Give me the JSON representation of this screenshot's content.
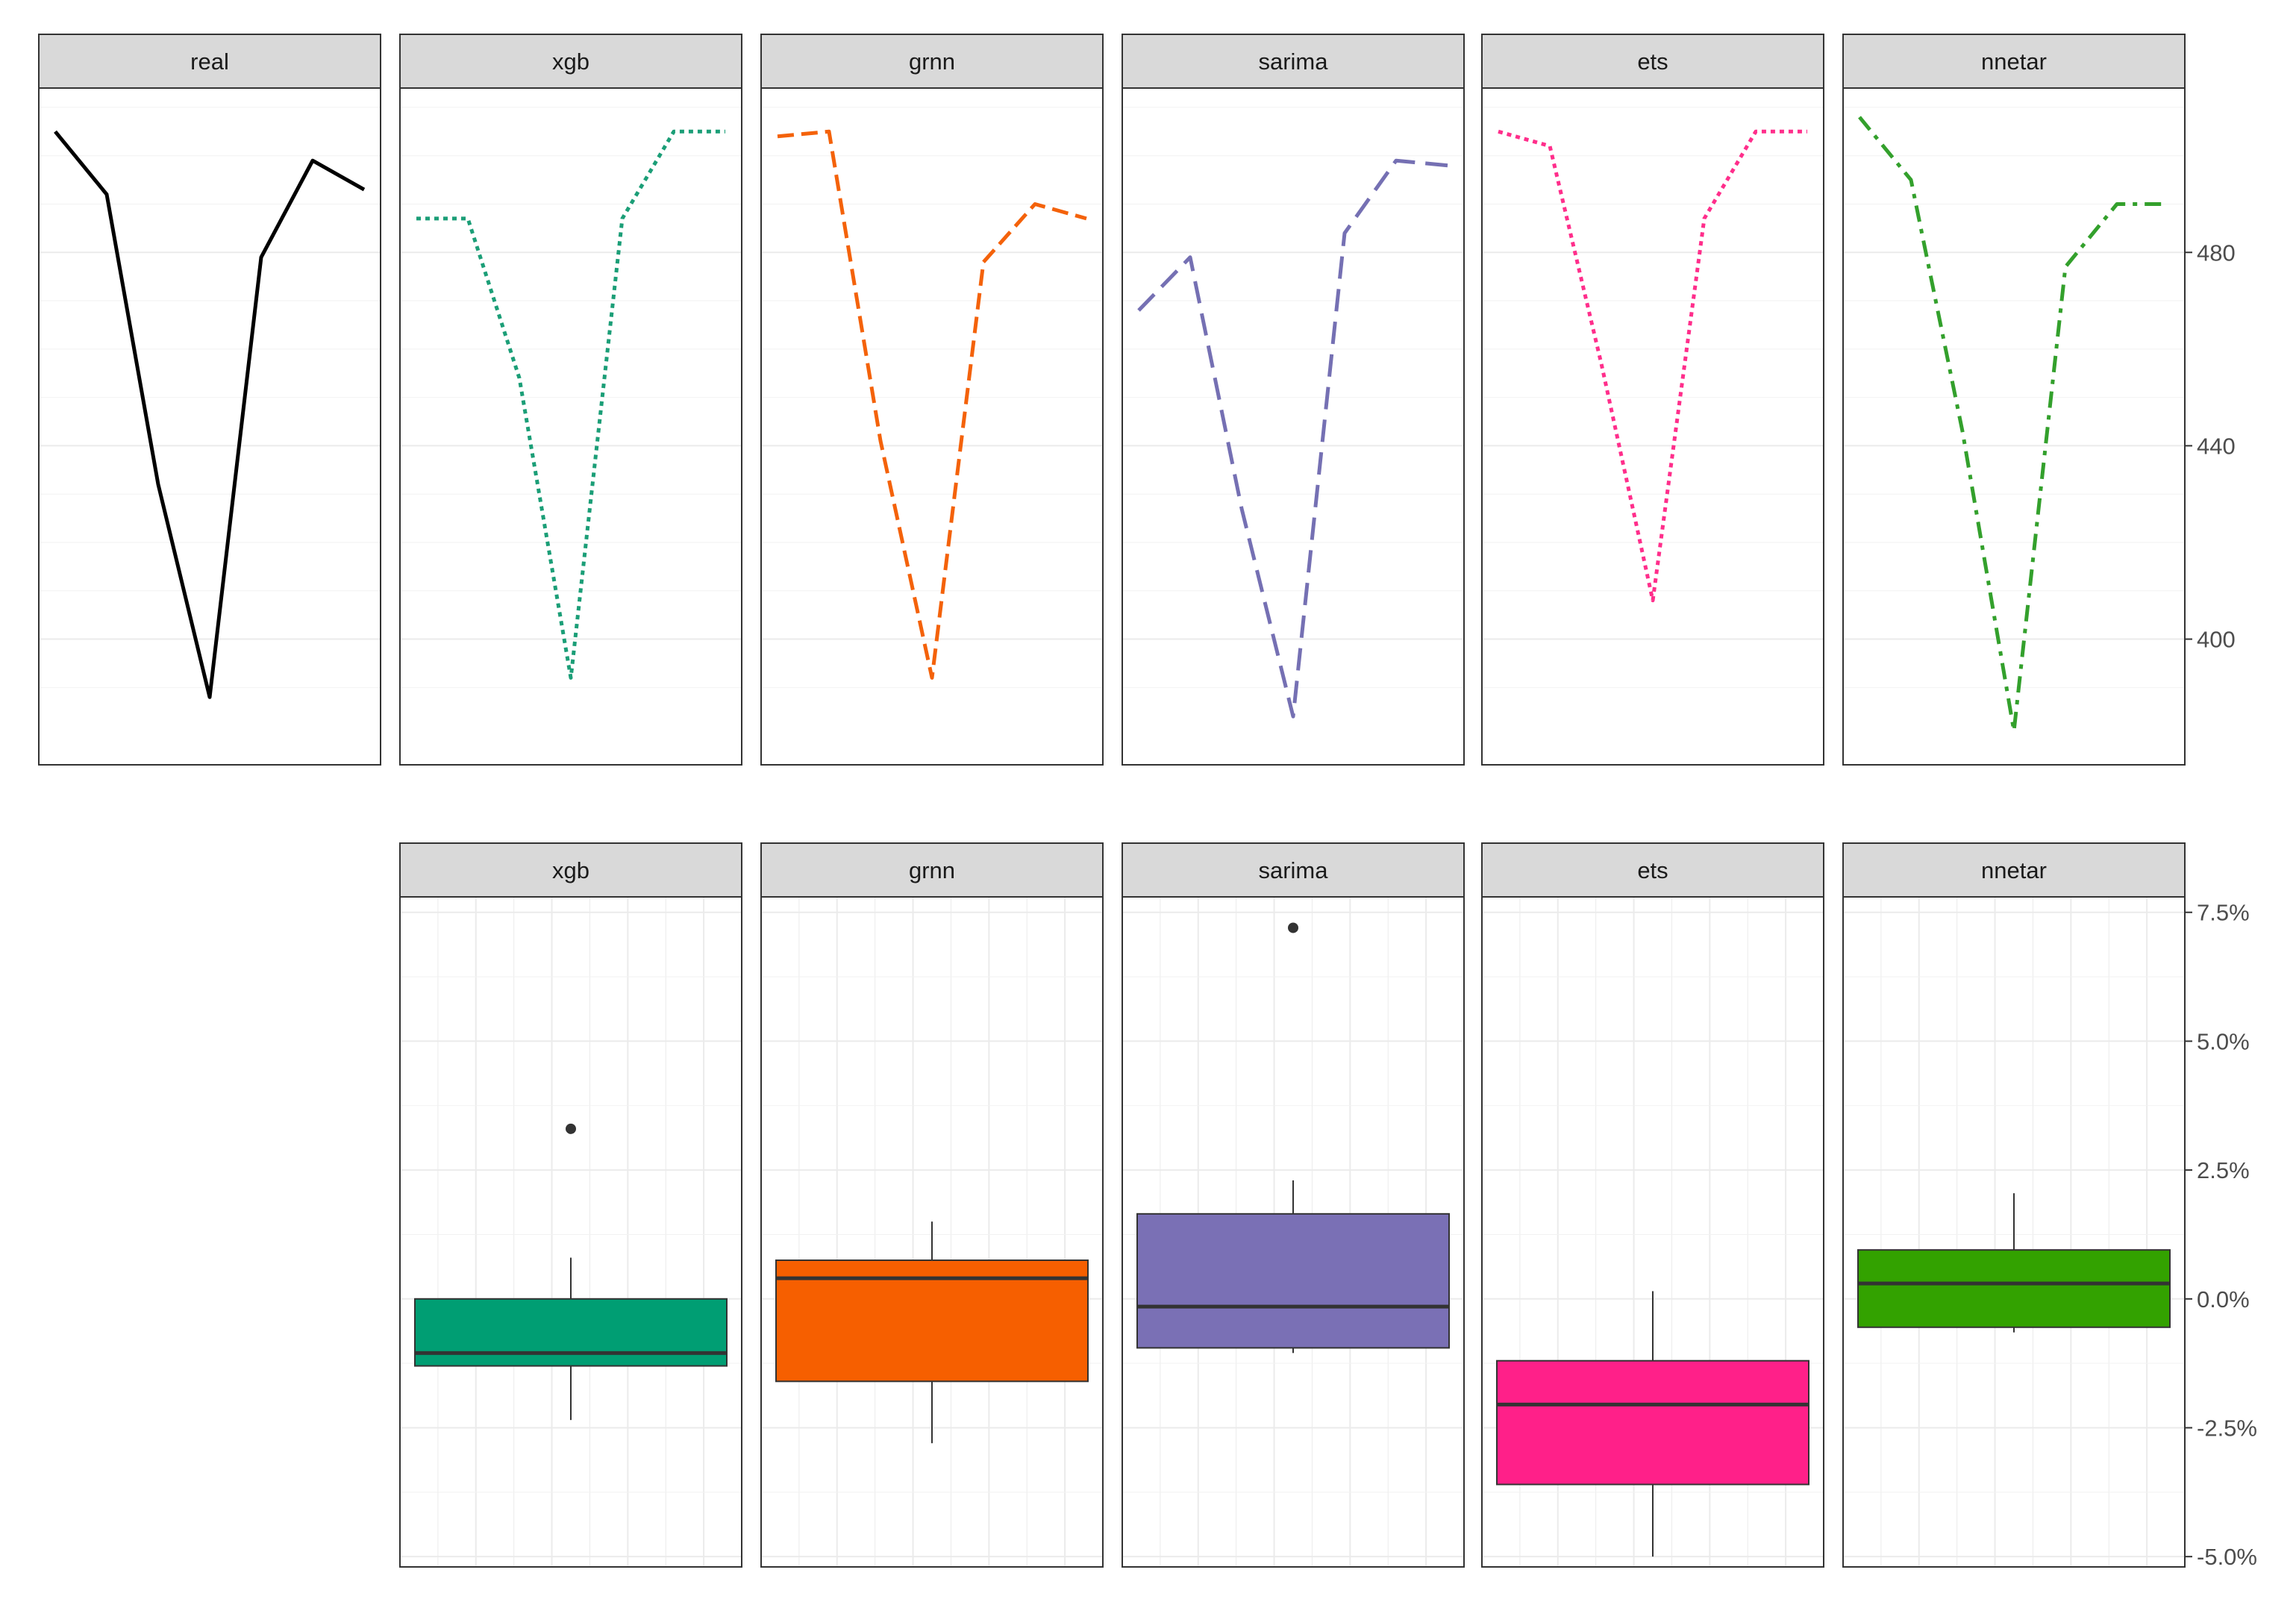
{
  "chart_data": [
    {
      "type": "line",
      "facet_labels": [
        "real",
        "xgb",
        "grnn",
        "sarima",
        "ets",
        "nnetar"
      ],
      "x": [
        1,
        2,
        3,
        4,
        5,
        6,
        7
      ],
      "ylim": [
        374,
        514
      ],
      "yticks": [
        400,
        440,
        480
      ],
      "ytick_labels": [
        "400",
        "440",
        "480"
      ],
      "series": [
        {
          "facet": "real",
          "color": "#000000",
          "dash": "solid",
          "values": [
            505,
            492,
            432,
            388,
            479,
            499,
            493
          ]
        },
        {
          "facet": "xgb",
          "color": "#1B9E77",
          "dash": "dotted",
          "values": [
            487,
            487,
            454,
            392,
            487,
            505,
            505
          ]
        },
        {
          "facet": "grnn",
          "color": "#F4620A",
          "dash": "dashed",
          "values": [
            504,
            505,
            441,
            392,
            478,
            490,
            487
          ]
        },
        {
          "facet": "sarima",
          "color": "#7570B3",
          "dash": "longdash",
          "values": [
            468,
            479,
            427,
            384,
            484,
            499,
            498
          ]
        },
        {
          "facet": "ets",
          "color": "#FF2E8B",
          "dash": "dotted",
          "values": [
            505,
            502,
            457,
            408,
            487,
            505,
            505
          ]
        },
        {
          "facet": "nnetar",
          "color": "#33A02C",
          "dash": "dotdash",
          "values": [
            508,
            495,
            443,
            381,
            477,
            490,
            490
          ]
        }
      ],
      "grid": true,
      "legend": "none"
    },
    {
      "type": "boxplot",
      "facet_labels": [
        "xgb",
        "grnn",
        "sarima",
        "ets",
        "nnetar"
      ],
      "ylim": [
        -5.2,
        7.8
      ],
      "yticks": [
        -5.0,
        -2.5,
        0.0,
        2.5,
        5.0,
        7.5
      ],
      "ytick_labels": [
        "-5.0%",
        "-2.5%",
        "0.0%",
        "2.5%",
        "5.0%",
        "7.5%"
      ],
      "boxes": [
        {
          "facet": "xgb",
          "color": "#009E73",
          "whisker_low": -2.35,
          "q1": -1.3,
          "median": -1.05,
          "q3": 0.0,
          "whisker_high": 0.8,
          "outliers": [
            3.3
          ]
        },
        {
          "facet": "grnn",
          "color": "#F65F00",
          "whisker_low": -2.8,
          "q1": -1.6,
          "median": 0.4,
          "q3": 0.75,
          "whisker_high": 1.5,
          "outliers": []
        },
        {
          "facet": "sarima",
          "color": "#7A70B5",
          "whisker_low": -1.05,
          "q1": -0.95,
          "median": -0.15,
          "q3": 1.65,
          "whisker_high": 2.3,
          "outliers": [
            7.2
          ]
        },
        {
          "facet": "ets",
          "color": "#FF2089",
          "whisker_low": -5.0,
          "q1": -3.6,
          "median": -2.05,
          "q3": -1.2,
          "whisker_high": 0.15,
          "outliers": []
        },
        {
          "facet": "nnetar",
          "color": "#33A200",
          "whisker_low": -0.65,
          "q1": -0.55,
          "median": 0.3,
          "q3": 0.95,
          "whisker_high": 2.05,
          "outliers": []
        }
      ],
      "grid": true,
      "legend": "none"
    }
  ]
}
